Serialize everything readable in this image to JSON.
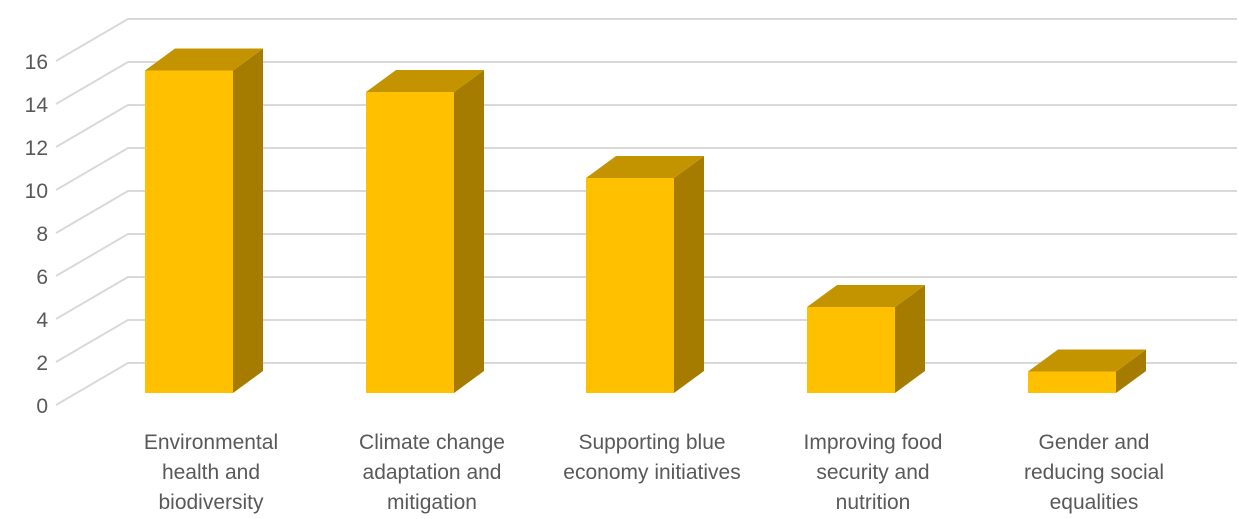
{
  "chart_data": {
    "type": "bar",
    "categories": [
      [
        "Environmental",
        "health and",
        "biodiversity"
      ],
      [
        "Climate change",
        "adaptation and",
        "mitigation"
      ],
      [
        "Supporting blue",
        "economy initiatives"
      ],
      [
        "Improving food",
        "security and",
        "nutrition"
      ],
      [
        "Gender and",
        "reducing social",
        "equalities"
      ]
    ],
    "values": [
      15,
      14,
      10,
      4,
      1
    ],
    "ylim": [
      0,
      16
    ],
    "yticks": [
      0,
      2,
      4,
      6,
      8,
      10,
      12,
      14,
      16
    ],
    "grid": true,
    "style": "3d-column",
    "colors": {
      "front": "#FFC000",
      "top": "#C49400",
      "side": "#A67C00",
      "grid": "#D9D9D9",
      "text": "#595959"
    }
  }
}
